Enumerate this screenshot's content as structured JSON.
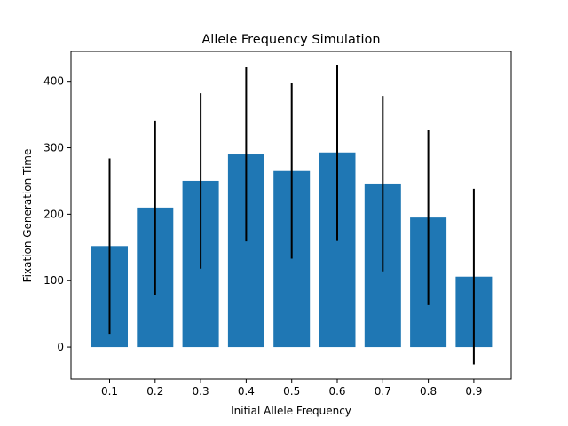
{
  "chart_data": {
    "type": "bar",
    "title": "Allele Frequency Simulation",
    "xlabel": "Initial Allele Frequency",
    "ylabel": "Fixation Generation Time",
    "categories": [
      "0.1",
      "0.2",
      "0.3",
      "0.4",
      "0.5",
      "0.6",
      "0.7",
      "0.8",
      "0.9"
    ],
    "values": [
      152,
      210,
      250,
      290,
      265,
      293,
      246,
      195,
      106
    ],
    "errors": [
      132,
      131,
      132,
      131,
      132,
      132,
      132,
      132,
      132
    ],
    "ylim": [
      -48,
      445
    ],
    "yticks": [
      0,
      100,
      200,
      300,
      400
    ],
    "bar_color": "#1f77b4",
    "error_color": "#000000",
    "grid": false,
    "legend": "none"
  }
}
